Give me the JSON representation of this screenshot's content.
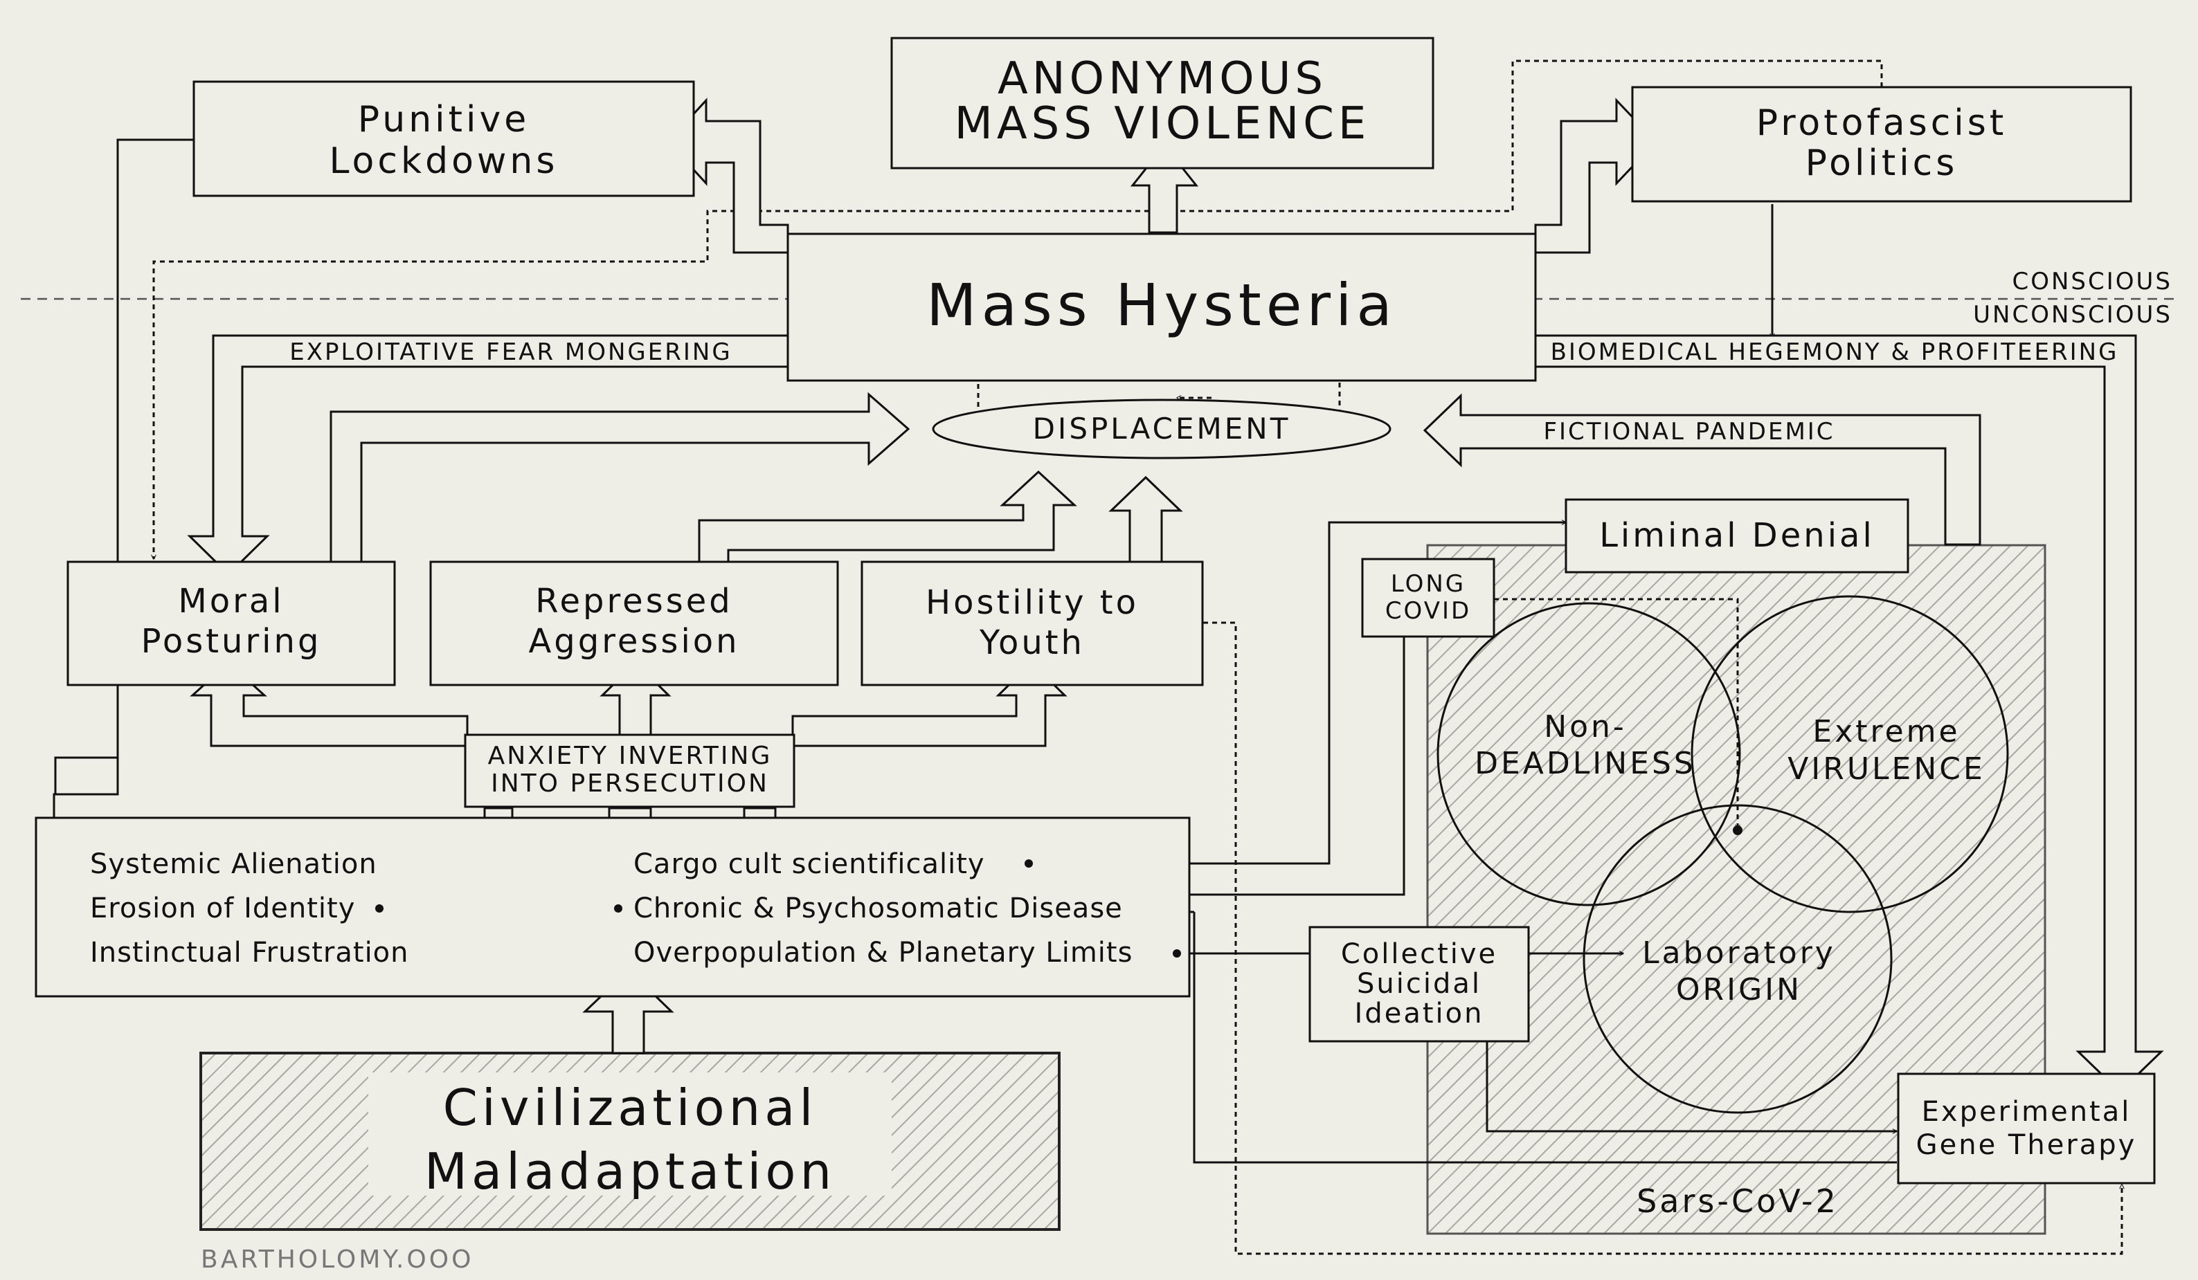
{
  "nodes": {
    "punitive_lockdowns": [
      "Punitive",
      "Lockdowns"
    ],
    "anonymous_mass_violence": [
      "Anonymous",
      "mass violence"
    ],
    "protofascist_politics": [
      "Protofascist",
      "Politics"
    ],
    "mass_hysteria": "Mass Hysteria",
    "displacement": "displacement",
    "moral_posturing": [
      "Moral",
      "Posturing"
    ],
    "repressed_aggression": [
      "Repressed",
      "Aggression"
    ],
    "hostility_to_youth": [
      "Hostility to",
      "Youth"
    ],
    "anxiety_inverting": [
      "anxiety inverting",
      "into persecution"
    ],
    "liminal_denial": "Liminal Denial",
    "long_covid": [
      "long",
      "covid"
    ],
    "non_deadliness": [
      "Non-",
      "deadliness"
    ],
    "extreme_virulence": [
      "Extreme",
      "virulence"
    ],
    "laboratory_origin": [
      "Laboratory",
      "origin"
    ],
    "collective_suicidal_ideation": [
      "Collective",
      "Suicidal",
      "Ideation"
    ],
    "experimental_gene_therapy": [
      "Experimental",
      "Gene Therapy"
    ],
    "sars_cov_2": "Sars-CoV-2",
    "civilizational_maladaptation": [
      "Civilizational",
      "Maladaptation"
    ]
  },
  "edge_labels": {
    "exploitative_fear": "exploitative fear mongering",
    "biomedical_hegemony": "biomedical hegemony & profiteering",
    "fictional_pandemic": "fictional pandemic"
  },
  "boundary": {
    "conscious": "conscious",
    "unconscious": "unconscious"
  },
  "factors": {
    "left": [
      "Systemic Alienation",
      "Erosion of Identity",
      "Instinctual Frustration"
    ],
    "right": [
      "Cargo cult scientificality",
      "Chronic & Psychosomatic Disease",
      "Overpopulation & Planetary Limits"
    ]
  },
  "credit": "BARTHOLOMY.OOO",
  "colors": {
    "background": "#eeede6",
    "ink": "#111111",
    "hatch": "#9a9a94"
  }
}
